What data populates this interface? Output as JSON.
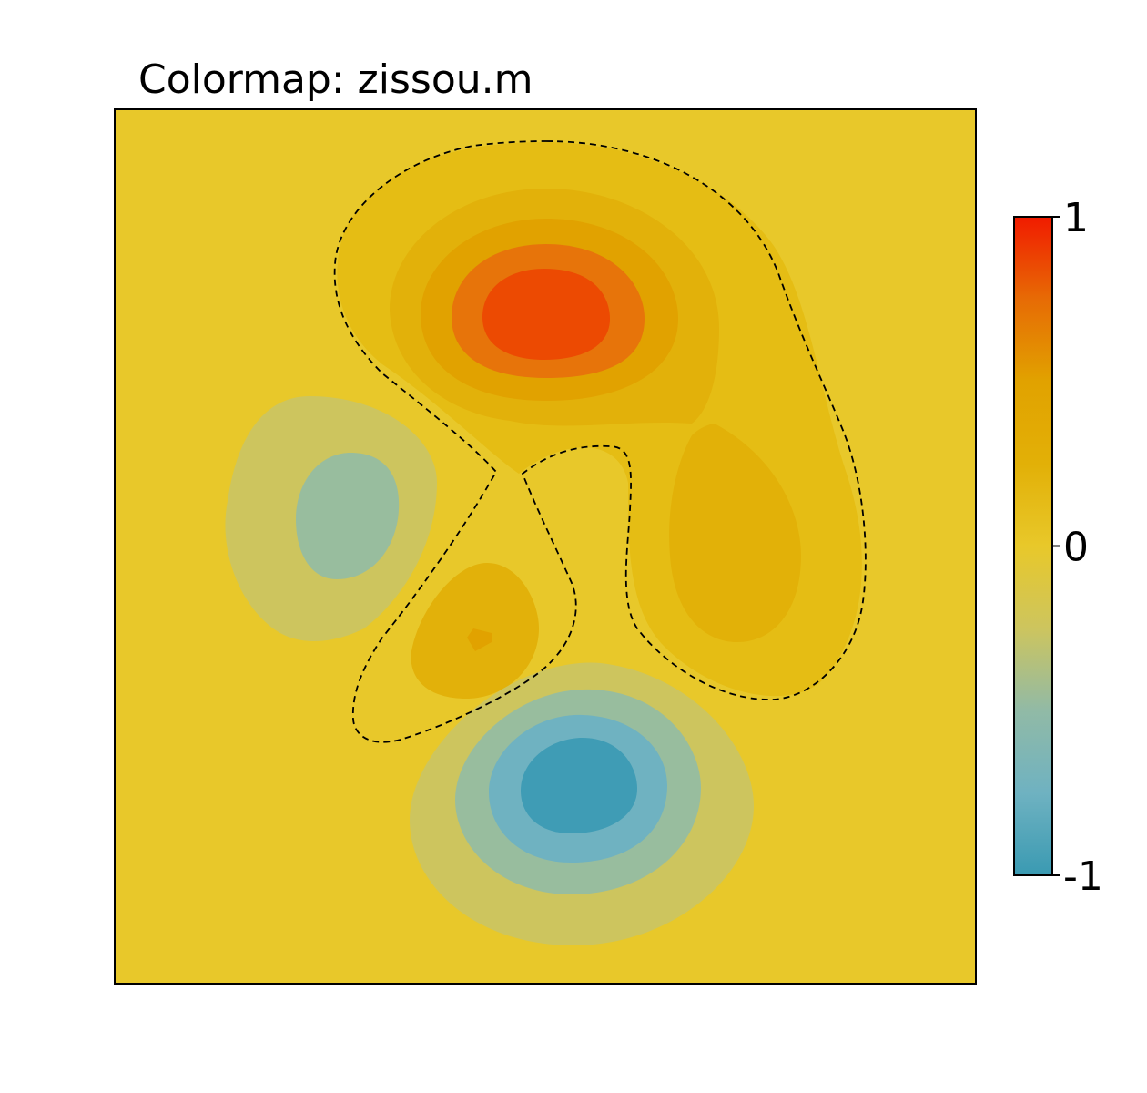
{
  "chart_data": {
    "type": "heatmap",
    "subtype": "filled-contour",
    "title": "Colormap: zissou.m",
    "xlabel": "",
    "ylabel": "",
    "x_ticks_shown": false,
    "y_ticks_shown": false,
    "grid": false,
    "zlim": [
      -1,
      1
    ],
    "colorbar": {
      "position": "right",
      "ticks": [
        {
          "value": 1,
          "label": "1"
        },
        {
          "value": 0,
          "label": "0"
        },
        {
          "value": -1,
          "label": "-1"
        }
      ],
      "colors": [
        {
          "value": -1.0,
          "color": "#3a9ab2"
        },
        {
          "value": -0.75,
          "color": "#6fb2c1"
        },
        {
          "value": -0.5,
          "color": "#91baa6"
        },
        {
          "value": -0.25,
          "color": "#cdc55e"
        },
        {
          "value": 0.0,
          "color": "#e8c82a"
        },
        {
          "value": 0.25,
          "color": "#e2b007"
        },
        {
          "value": 0.5,
          "color": "#e1a200"
        },
        {
          "value": 0.75,
          "color": "#e76b05"
        },
        {
          "value": 1.0,
          "color": "#f11b00"
        }
      ]
    },
    "background_level": 0.0,
    "background_color": "#e8c82a",
    "zero_contour_style": "dashed",
    "features": [
      {
        "name": "upper peak",
        "sign": "positive",
        "peak_value": 0.85
      },
      {
        "name": "right lobe",
        "sign": "positive",
        "peak_value": 0.2
      },
      {
        "name": "lower-center lobe",
        "sign": "positive",
        "peak_value": 0.3
      },
      {
        "name": "left trough",
        "sign": "negative",
        "peak_value": -0.5
      },
      {
        "name": "lower trough",
        "sign": "negative",
        "peak_value": -0.9
      }
    ]
  }
}
